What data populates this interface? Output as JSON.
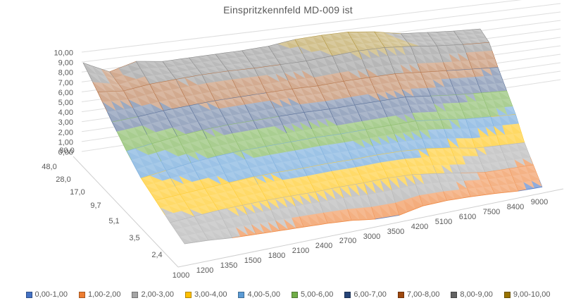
{
  "title": "Einspritzkennfeld MD-009  ist",
  "chart_data": {
    "type": "surface",
    "title": "Einspritzkennfeld MD-009  ist",
    "x_categories": [
      "1000",
      "1200",
      "1350",
      "1500",
      "1800",
      "2100",
      "2400",
      "2700",
      "3000",
      "3500",
      "4200",
      "5100",
      "6100",
      "7500",
      "8400",
      "9000"
    ],
    "depth_categories": [
      "80,0",
      "48,0",
      "28,0",
      "17,0",
      "9,7",
      "5,1",
      "3,5",
      "2,4"
    ],
    "z_axis": {
      "min": 0,
      "max": 10,
      "tick_step": 1,
      "tick_labels": [
        "0,00",
        "1,00",
        "2,00",
        "3,00",
        "4,00",
        "5,00",
        "6,00",
        "7,00",
        "8,00",
        "9,00",
        "10,00"
      ]
    },
    "values_note": "rows ordered back(80,0) to front(2,4), columns follow x_categories; values estimated from surface bands",
    "values": [
      [
        9.0,
        7.8,
        8.6,
        8.3,
        8.4,
        8.5,
        8.6,
        8.8,
        9.3,
        9.5,
        9.6,
        9.3,
        8.7,
        8.5,
        8.3,
        8.2
      ],
      [
        7.7,
        7.5,
        7.9,
        8.1,
        8.3,
        8.4,
        8.4,
        8.5,
        8.6,
        8.9,
        9.2,
        9.3,
        9.1,
        8.8,
        8.6,
        8.5
      ],
      [
        6.3,
        6.5,
        6.8,
        7.0,
        7.2,
        7.3,
        7.4,
        7.5,
        7.5,
        7.7,
        7.8,
        7.9,
        7.7,
        7.5,
        7.3,
        7.1
      ],
      [
        5.0,
        5.4,
        5.8,
        6.1,
        6.3,
        6.4,
        6.5,
        6.6,
        6.6,
        6.7,
        6.8,
        6.9,
        6.6,
        6.3,
        6.1,
        5.9
      ],
      [
        3.9,
        4.3,
        4.7,
        5.0,
        5.2,
        5.3,
        5.4,
        5.5,
        5.5,
        5.6,
        5.7,
        5.8,
        5.5,
        5.1,
        4.9,
        4.7
      ],
      [
        3.3,
        3.5,
        3.7,
        3.9,
        4.1,
        4.2,
        4.2,
        4.3,
        4.3,
        4.4,
        4.4,
        4.2,
        3.8,
        3.2,
        3.0,
        2.8
      ],
      [
        2.7,
        2.9,
        3.1,
        3.2,
        3.3,
        3.3,
        3.3,
        3.4,
        3.4,
        3.5,
        3.4,
        3.0,
        2.5,
        2.0,
        1.9,
        1.8
      ],
      [
        2.2,
        2.1,
        1.9,
        1.8,
        1.7,
        1.6,
        1.5,
        1.3,
        0.9,
        0.8,
        1.4,
        1.5,
        1.4,
        1.2,
        0.9,
        0.8
      ]
    ],
    "legend_position": "bottom",
    "legend": [
      {
        "label": "0,00-1,00",
        "color": "#4472C4"
      },
      {
        "label": "1,00-2,00",
        "color": "#ED7D31"
      },
      {
        "label": "2,00-3,00",
        "color": "#A5A5A5"
      },
      {
        "label": "3,00-4,00",
        "color": "#FFC000"
      },
      {
        "label": "4,00-5,00",
        "color": "#5B9BD5"
      },
      {
        "label": "5,00-6,00",
        "color": "#70AD47"
      },
      {
        "label": "6,00-7,00",
        "color": "#264478"
      },
      {
        "label": "7,00-8,00",
        "color": "#9E480E"
      },
      {
        "label": "8,00-9,00",
        "color": "#636363"
      },
      {
        "label": "9,00-10,00",
        "color": "#997300"
      }
    ],
    "gridlines": true,
    "text_color": "#595959"
  }
}
